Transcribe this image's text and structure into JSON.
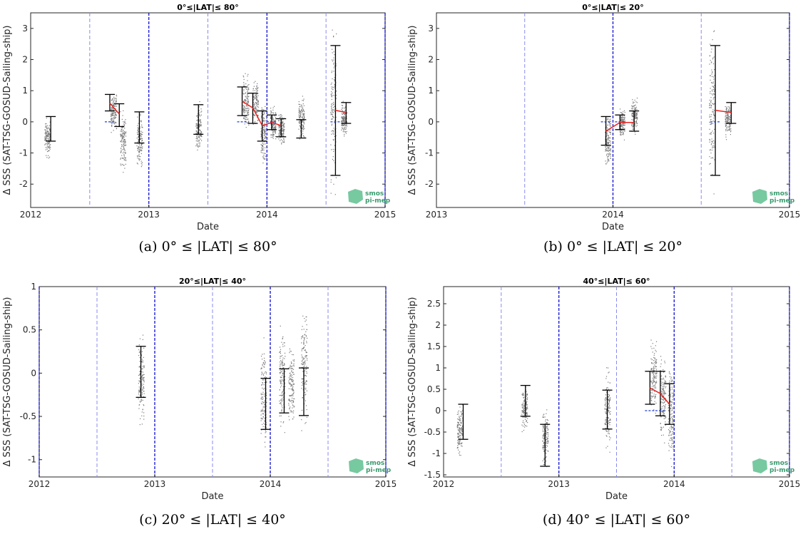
{
  "chart_data": [
    {
      "type": "scatter",
      "title": "0°≤|LAT|≤ 80°",
      "caption": "(a) 0° ≤ |LAT| ≤ 80°",
      "xlabel": "Date",
      "ylabel": "Δ SSS (SAT-TSG-GOSUD-Sailing-ship)",
      "xlim": [
        2012,
        2015
      ],
      "ylim": [
        -2.75,
        3.5
      ],
      "x_ticks": [
        "2012",
        "2013",
        "2014",
        "2015"
      ],
      "y_ticks": [
        -2,
        -1,
        0,
        1,
        2,
        3
      ],
      "y_tick_labels": [
        "-2",
        "-1",
        "0",
        "1",
        "2",
        "3"
      ],
      "year_lines": [
        2013,
        2014,
        2015
      ],
      "half_year_lines": [
        2012.5,
        2013.5,
        2014.5
      ],
      "error_bars": [
        {
          "x": 2012.17,
          "low": -0.62,
          "high": 0.17
        },
        {
          "x": 2012.67,
          "low": 0.35,
          "high": 0.88
        },
        {
          "x": 2012.75,
          "low": -0.15,
          "high": 0.58
        },
        {
          "x": 2012.92,
          "low": -0.68,
          "high": 0.32
        },
        {
          "x": 2013.42,
          "low": -0.4,
          "high": 0.55
        },
        {
          "x": 2013.79,
          "low": 0.2,
          "high": 1.12
        },
        {
          "x": 2013.88,
          "low": -0.05,
          "high": 0.92
        },
        {
          "x": 2013.96,
          "low": -0.62,
          "high": 0.35
        },
        {
          "x": 2014.04,
          "low": -0.25,
          "high": 0.22
        },
        {
          "x": 2014.12,
          "low": -0.48,
          "high": 0.1
        },
        {
          "x": 2014.29,
          "low": -0.52,
          "high": 0.07
        },
        {
          "x": 2014.58,
          "low": -1.72,
          "high": 2.45
        },
        {
          "x": 2014.67,
          "low": -0.05,
          "high": 0.62
        }
      ],
      "mean_line_segments": [
        [
          [
            2012.67,
            0.6
          ],
          [
            2012.75,
            0.25
          ]
        ],
        [
          [
            2013.79,
            0.66
          ],
          [
            2013.88,
            0.45
          ],
          [
            2013.96,
            -0.12
          ],
          [
            2014.04,
            -0.02
          ],
          [
            2014.12,
            -0.12
          ]
        ],
        [
          [
            2014.58,
            0.37
          ],
          [
            2014.67,
            0.3
          ]
        ]
      ],
      "median_dashes": [
        2012.67,
        2013.79,
        2014.04,
        2014.58
      ],
      "scatter_columns": [
        {
          "x": 2012.14,
          "low": -1.2,
          "high": 0.2
        },
        {
          "x": 2012.7,
          "low": -0.5,
          "high": 1.2
        },
        {
          "x": 2012.78,
          "low": -1.8,
          "high": 0.7
        },
        {
          "x": 2012.92,
          "low": -1.7,
          "high": 0.5
        },
        {
          "x": 2013.42,
          "low": -1.2,
          "high": 0.8
        },
        {
          "x": 2013.82,
          "low": -0.6,
          "high": 1.8
        },
        {
          "x": 2013.9,
          "low": -0.3,
          "high": 1.5
        },
        {
          "x": 2013.97,
          "low": -1.8,
          "high": 1.0
        },
        {
          "x": 2014.05,
          "low": -0.7,
          "high": 0.6
        },
        {
          "x": 2014.12,
          "low": -0.8,
          "high": 0.4
        },
        {
          "x": 2014.29,
          "low": -0.7,
          "high": 1.0
        },
        {
          "x": 2014.56,
          "low": -2.7,
          "high": 3.5
        },
        {
          "x": 2014.65,
          "low": -0.6,
          "high": 0.8
        }
      ]
    },
    {
      "type": "scatter",
      "title": "0°≤|LAT|≤ 20°",
      "caption": "(b) 0° ≤ |LAT| ≤ 20°",
      "xlabel": "Date",
      "ylabel": "Δ SSS (SAT-TSG-GOSUD-Sailing-ship)",
      "xlim": [
        2013,
        2015
      ],
      "ylim": [
        -2.75,
        3.5
      ],
      "x_ticks": [
        "2013",
        "2014",
        "2015"
      ],
      "y_ticks": [
        -2,
        -1,
        0,
        1,
        2,
        3
      ],
      "y_tick_labels": [
        "-2",
        "-1",
        "0",
        "1",
        "2",
        "3"
      ],
      "year_lines": [
        2014,
        2015
      ],
      "half_year_lines": [
        2013.5,
        2014.5
      ],
      "error_bars": [
        {
          "x": 2013.96,
          "low": -0.75,
          "high": 0.17
        },
        {
          "x": 2014.04,
          "low": -0.25,
          "high": 0.22
        },
        {
          "x": 2014.12,
          "low": -0.3,
          "high": 0.35
        },
        {
          "x": 2014.58,
          "low": -1.72,
          "high": 2.45
        },
        {
          "x": 2014.67,
          "low": -0.05,
          "high": 0.62
        }
      ],
      "mean_line_segments": [
        [
          [
            2013.96,
            -0.3
          ],
          [
            2014.04,
            -0.02
          ],
          [
            2014.12,
            -0.02
          ]
        ],
        [
          [
            2014.58,
            0.37
          ],
          [
            2014.67,
            0.3
          ]
        ]
      ],
      "median_dashes": [
        2013.96,
        2014.04,
        2014.58
      ],
      "scatter_columns": [
        {
          "x": 2013.97,
          "low": -1.8,
          "high": 0.5
        },
        {
          "x": 2014.05,
          "low": -0.6,
          "high": 0.5
        },
        {
          "x": 2014.12,
          "low": -0.5,
          "high": 0.9
        },
        {
          "x": 2014.56,
          "low": -2.7,
          "high": 3.5
        },
        {
          "x": 2014.65,
          "low": -0.6,
          "high": 0.8
        }
      ]
    },
    {
      "type": "scatter",
      "title": "20°≤|LAT|≤ 40°",
      "caption": "(c) 20° ≤ |LAT| ≤ 40°",
      "xlabel": "Date",
      "ylabel": "Δ SSS (SAT-TSG-GOSUD-Sailing-ship)",
      "xlim": [
        2012,
        2015
      ],
      "ylim": [
        -1.2,
        1.0
      ],
      "x_ticks": [
        "2012",
        "2013",
        "2014",
        "2015"
      ],
      "y_ticks": [
        -1,
        -0.5,
        0,
        0.5,
        1
      ],
      "y_tick_labels": [
        "-1",
        "-0.5",
        "0",
        "0.5",
        "1"
      ],
      "year_lines": [
        2012,
        2013,
        2014,
        2015
      ],
      "half_year_lines": [
        2012.5,
        2013.5,
        2014.5
      ],
      "error_bars": [
        {
          "x": 2012.88,
          "low": -0.28,
          "high": 0.31
        },
        {
          "x": 2013.96,
          "low": -0.65,
          "high": -0.06
        },
        {
          "x": 2014.12,
          "low": -0.46,
          "high": 0.05
        },
        {
          "x": 2014.29,
          "low": -0.49,
          "high": 0.06
        }
      ],
      "mean_line_segments": [],
      "median_dashes": [],
      "scatter_columns": [
        {
          "x": 2012.88,
          "low": -0.7,
          "high": 0.55
        },
        {
          "x": 2013.94,
          "low": -1.1,
          "high": 0.55
        },
        {
          "x": 2014.1,
          "low": -0.8,
          "high": 0.65
        },
        {
          "x": 2014.18,
          "low": -0.7,
          "high": 0.45
        },
        {
          "x": 2014.29,
          "low": -0.72,
          "high": 0.92
        }
      ]
    },
    {
      "type": "scatter",
      "title": "40°≤|LAT|≤ 60°",
      "caption": "(d) 40° ≤ |LAT| ≤ 60°",
      "xlabel": "Date",
      "ylabel": "Δ SSS (SAT-TSG-GOSUD-Sailing-ship)",
      "xlim": [
        2012,
        2015
      ],
      "ylim": [
        -1.55,
        2.9
      ],
      "x_ticks": [
        "2012",
        "2013",
        "2014",
        "2015"
      ],
      "y_ticks": [
        -1.5,
        -1,
        -0.5,
        0,
        0.5,
        1,
        1.5,
        2,
        2.5
      ],
      "y_tick_labels": [
        "-1.5",
        "-1",
        "-0.5",
        "0",
        "0.5",
        "1",
        "1.5",
        "2",
        "2.5"
      ],
      "year_lines": [
        2013,
        2014,
        2015
      ],
      "half_year_lines": [
        2012.5,
        2013.5,
        2014.5
      ],
      "error_bars": [
        {
          "x": 2012.17,
          "low": -0.67,
          "high": 0.15
        },
        {
          "x": 2012.71,
          "low": -0.13,
          "high": 0.59
        },
        {
          "x": 2012.88,
          "low": -1.3,
          "high": -0.32
        },
        {
          "x": 2013.42,
          "low": -0.43,
          "high": 0.48
        },
        {
          "x": 2013.79,
          "low": 0.15,
          "high": 0.92
        },
        {
          "x": 2013.88,
          "low": -0.12,
          "high": 0.92
        },
        {
          "x": 2013.96,
          "low": -0.32,
          "high": 0.63
        }
      ],
      "mean_line_segments": [
        [
          [
            2013.79,
            0.53
          ],
          [
            2013.88,
            0.4
          ],
          [
            2013.96,
            0.15
          ]
        ]
      ],
      "median_dashes": [
        2013.79,
        2013.88
      ],
      "scatter_columns": [
        {
          "x": 2012.14,
          "low": -1.2,
          "high": 0.25
        },
        {
          "x": 2012.7,
          "low": -0.6,
          "high": 0.7
        },
        {
          "x": 2012.88,
          "low": -1.45,
          "high": 0.15
        },
        {
          "x": 2013.42,
          "low": -1.15,
          "high": 1.2
        },
        {
          "x": 2013.82,
          "low": -0.3,
          "high": 1.9
        },
        {
          "x": 2013.9,
          "low": -0.9,
          "high": 1.45
        },
        {
          "x": 2013.97,
          "low": -1.5,
          "high": 1.3
        }
      ]
    }
  ],
  "logo": {
    "line1": "smos",
    "line2": "pi-mep"
  },
  "colors": {
    "year_line": "#1f1fd6",
    "half_year_line": "#8a8af0",
    "mean_line": "#e8231f",
    "median": "#1f3fd6",
    "error_bar": "#000000",
    "scatter": "#7a7a7a",
    "logo": "#5fbf8f"
  }
}
